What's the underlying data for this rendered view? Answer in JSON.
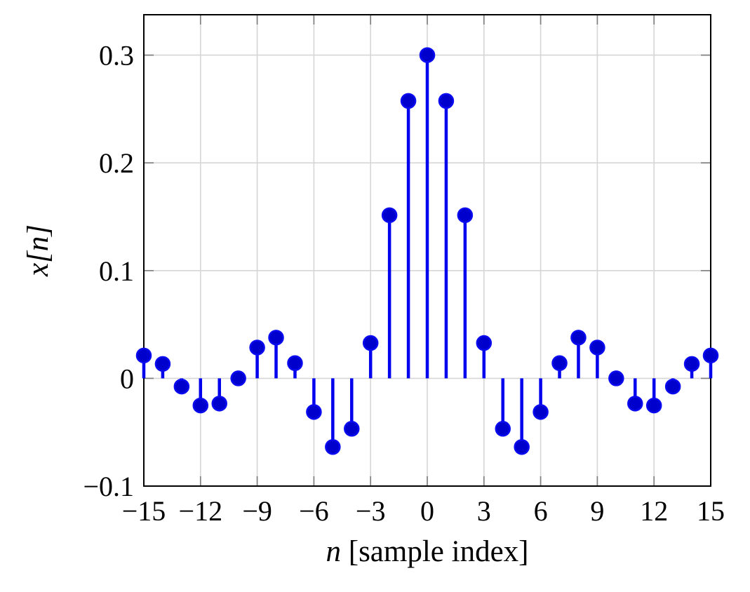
{
  "figure": {
    "background": "#ffffff"
  },
  "chart_data": {
    "type": "stem",
    "title": "",
    "xlabel": "n [sample index]",
    "xlabel_var": "n",
    "xlabel_rest": " [sample index]",
    "ylabel": "x[n]",
    "x": [
      -15,
      -14,
      -13,
      -12,
      -11,
      -10,
      -9,
      -8,
      -7,
      -6,
      -5,
      -4,
      -3,
      -2,
      -1,
      0,
      1,
      2,
      3,
      4,
      5,
      6,
      7,
      8,
      9,
      10,
      11,
      12,
      13,
      14,
      15
    ],
    "values": [
      0.0212,
      0.0134,
      -0.0076,
      -0.0252,
      -0.0234,
      0.0,
      0.0286,
      0.0378,
      0.0141,
      -0.0312,
      -0.0637,
      -0.0468,
      0.0328,
      0.1514,
      0.2575,
      0.3,
      0.2575,
      0.1514,
      0.0328,
      -0.0468,
      -0.0637,
      -0.0312,
      0.0141,
      0.0378,
      0.0286,
      0.0,
      -0.0234,
      -0.0252,
      -0.0076,
      0.0134,
      0.0212
    ],
    "xlim": [
      -15,
      15
    ],
    "ylim": [
      -0.1,
      0.3375
    ],
    "xticks": [
      -15,
      -12,
      -9,
      -6,
      -3,
      0,
      3,
      6,
      9,
      12,
      15
    ],
    "xtick_labels": [
      "−15",
      "−12",
      "−9",
      "−6",
      "−3",
      "0",
      "3",
      "6",
      "9",
      "12",
      "15"
    ],
    "yticks": [
      -0.1,
      0,
      0.1,
      0.2,
      0.3
    ],
    "ytick_labels": [
      "−0.1",
      "0",
      "0.1",
      "0.2",
      "0.3"
    ],
    "grid": true,
    "legend": null,
    "colors": {
      "stem": "#0000ee",
      "marker_fill": "#0000cd",
      "marker_stroke": "#0b0bf0",
      "grid": "#d6d6d6",
      "axis": "#000000",
      "tick": "#808080",
      "text": "#000000"
    },
    "marker_radius": 10,
    "stem_width": 4.5
  }
}
